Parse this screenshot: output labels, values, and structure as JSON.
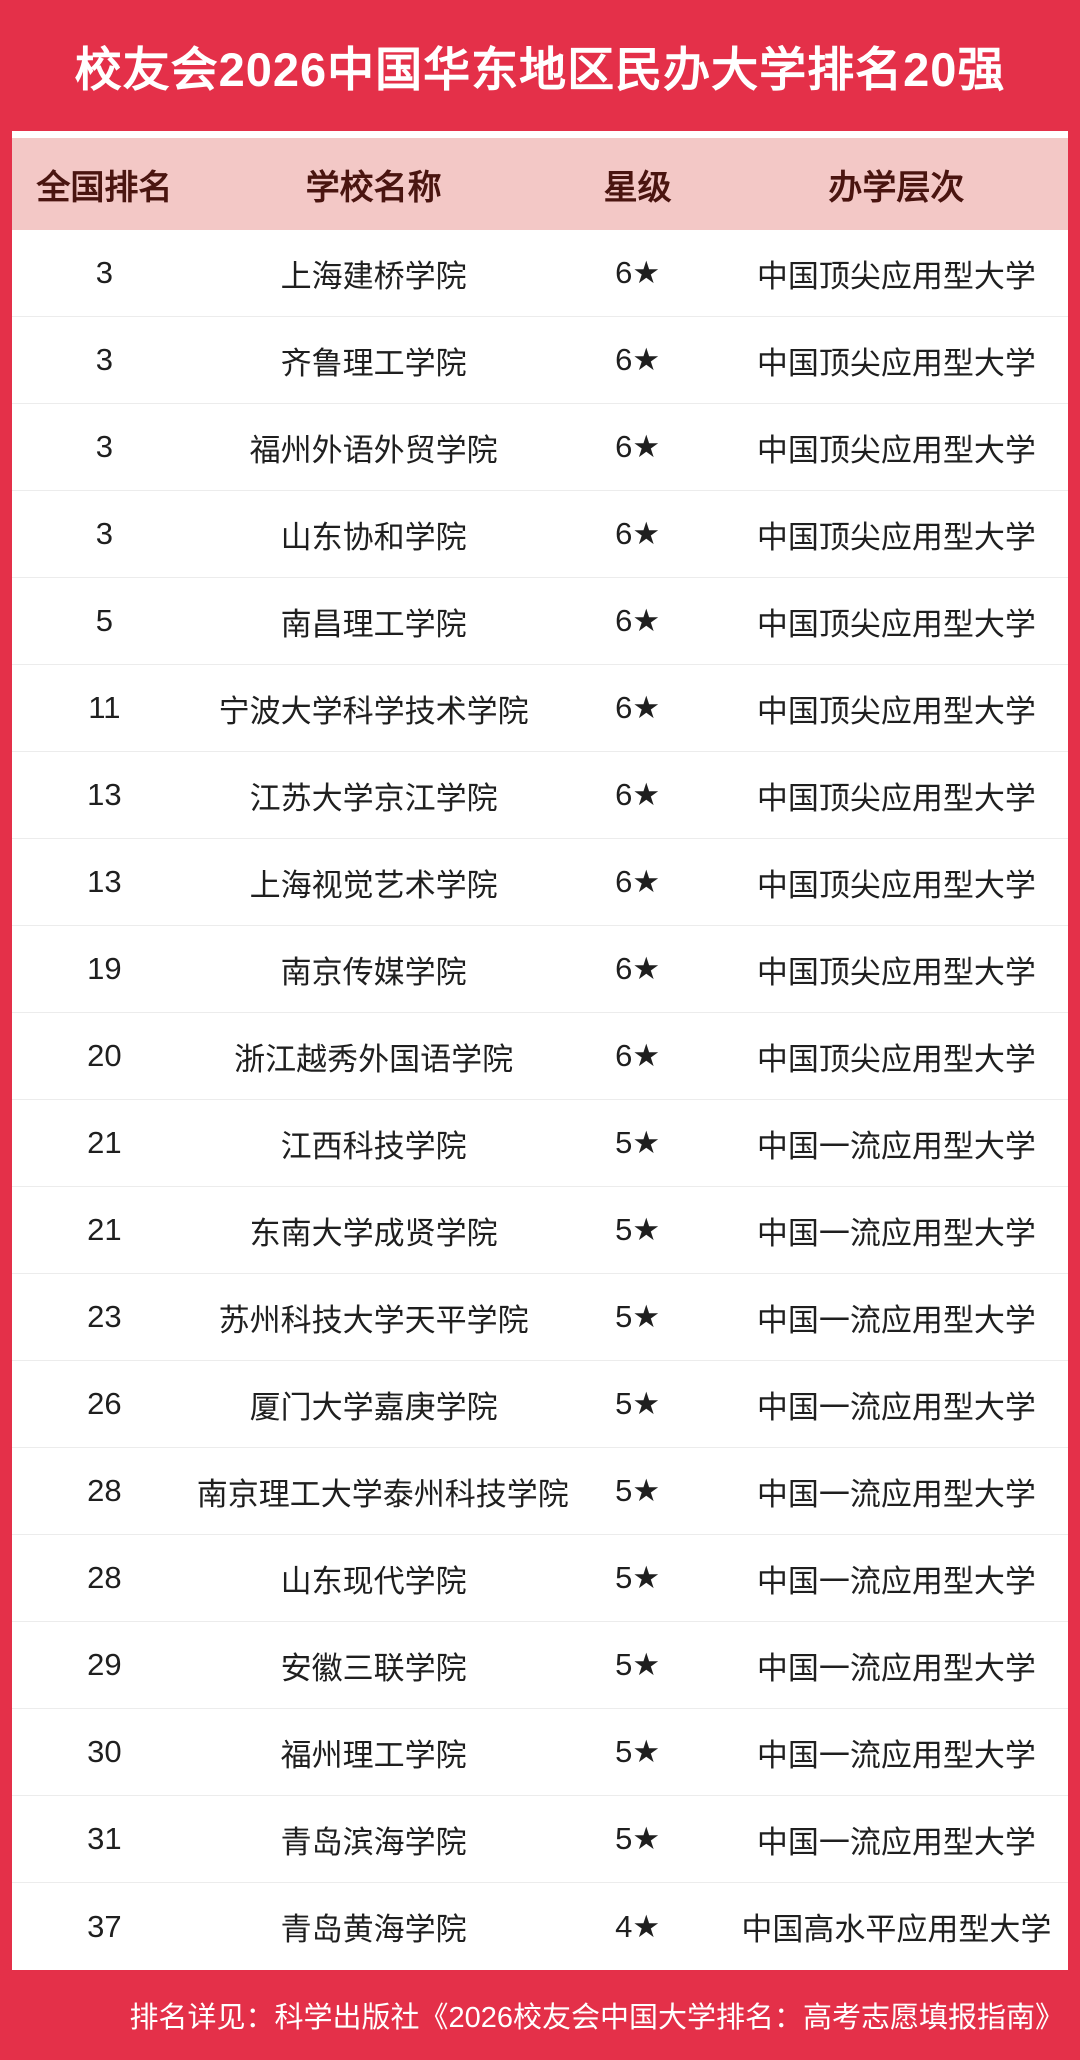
{
  "chart_data": {
    "type": "table",
    "title": "校友会2026中国华东地区民办大学排名20强",
    "columns": [
      "全国排名",
      "学校名称",
      "星级",
      "办学层次"
    ],
    "rows": [
      [
        "3",
        "上海建桥学院",
        "6★",
        "中国顶尖应用型大学"
      ],
      [
        "3",
        "齐鲁理工学院",
        "6★",
        "中国顶尖应用型大学"
      ],
      [
        "3",
        "福州外语外贸学院",
        "6★",
        "中国顶尖应用型大学"
      ],
      [
        "3",
        "山东协和学院",
        "6★",
        "中国顶尖应用型大学"
      ],
      [
        "5",
        "南昌理工学院",
        "6★",
        "中国顶尖应用型大学"
      ],
      [
        "11",
        "宁波大学科学技术学院",
        "6★",
        "中国顶尖应用型大学"
      ],
      [
        "13",
        "江苏大学京江学院",
        "6★",
        "中国顶尖应用型大学"
      ],
      [
        "13",
        "上海视觉艺术学院",
        "6★",
        "中国顶尖应用型大学"
      ],
      [
        "19",
        "南京传媒学院",
        "6★",
        "中国顶尖应用型大学"
      ],
      [
        "20",
        "浙江越秀外国语学院",
        "6★",
        "中国顶尖应用型大学"
      ],
      [
        "21",
        "江西科技学院",
        "5★",
        "中国一流应用型大学"
      ],
      [
        "21",
        "东南大学成贤学院",
        "5★",
        "中国一流应用型大学"
      ],
      [
        "23",
        "苏州科技大学天平学院",
        "5★",
        "中国一流应用型大学"
      ],
      [
        "26",
        "厦门大学嘉庚学院",
        "5★",
        "中国一流应用型大学"
      ],
      [
        "28",
        "南京理工大学泰州科技学院",
        "5★",
        "中国一流应用型大学"
      ],
      [
        "28",
        "山东现代学院",
        "5★",
        "中国一流应用型大学"
      ],
      [
        "29",
        "安徽三联学院",
        "5★",
        "中国一流应用型大学"
      ],
      [
        "30",
        "福州理工学院",
        "5★",
        "中国一流应用型大学"
      ],
      [
        "31",
        "青岛滨海学院",
        "5★",
        "中国一流应用型大学"
      ],
      [
        "37",
        "青岛黄海学院",
        "4★",
        "中国高水平应用型大学"
      ]
    ]
  },
  "footer": {
    "note": "排名详见：科学出版社《2026校友会中国大学排名：高考志愿填报指南》"
  },
  "colors": {
    "primary_red": "#E43049",
    "header_pink": "#F3C8C6",
    "header_text": "#4A1510",
    "row_text": "#1F1F1F",
    "separator": "#ECECEC",
    "title_text": "#FFFFFF"
  }
}
